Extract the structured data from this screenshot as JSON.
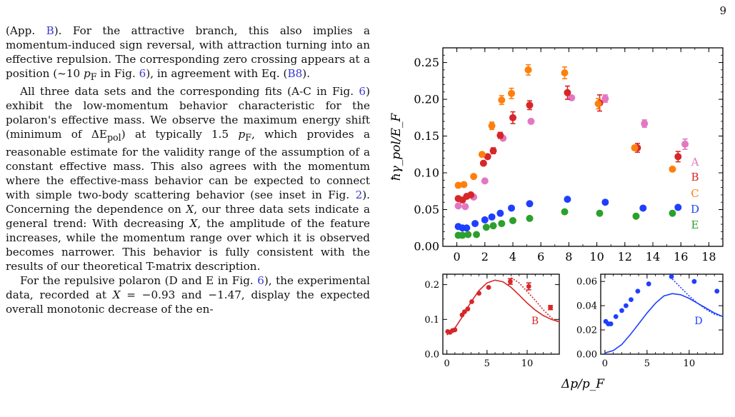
{
  "page_number": "9",
  "paragraphs": [
    {
      "indent": false,
      "segments": [
        {
          "t": "(App. "
        },
        {
          "t": "B",
          "link": true
        },
        {
          "t": "). For the attractive branch, this also implies a momentum-induced sign reversal, with attraction turning into an effective repulsion. The corresponding zero crossing appears at a position (~10 "
        },
        {
          "t": "p",
          "math": true
        },
        {
          "t": "F",
          "sub": true
        },
        {
          "t": " in Fig. "
        },
        {
          "t": "6",
          "link": true
        },
        {
          "t": "), in agreement with Eq. ("
        },
        {
          "t": "B8",
          "link": true
        },
        {
          "t": ")."
        }
      ]
    },
    {
      "indent": true,
      "segments": [
        {
          "t": "All three data sets and the corresponding fits (A-C in Fig. "
        },
        {
          "t": "6",
          "link": true
        },
        {
          "t": ") exhibit the low-momentum behavior characteristic for the polaron's effective mass. We observe the maximum energy shift (minimum of ΔE"
        },
        {
          "t": "pol",
          "sub": true
        },
        {
          "t": ") at typically 1.5 "
        },
        {
          "t": "p",
          "math": true
        },
        {
          "t": "F",
          "sub": true
        },
        {
          "t": ", which provides a reasonable estimate for the validity range of the assumption of a constant effective mass. This also agrees with the momentum where the effective-mass behavior can be expected to connect with simple two-body scattering behavior (see inset in Fig. "
        },
        {
          "t": "2",
          "link": true
        },
        {
          "t": "). Concerning the dependence on "
        },
        {
          "t": "X",
          "math": true
        },
        {
          "t": ", our three data sets indicate a general trend: With decreasing "
        },
        {
          "t": "X",
          "math": true
        },
        {
          "t": ", the amplitude of the feature increases, while the momentum range over which it is observed becomes narrower. This behavior is fully consistent with the results of our theoretical T-matrix description."
        }
      ]
    },
    {
      "indent": true,
      "segments": [
        {
          "t": "For the repulsive polaron (D and E in Fig. "
        },
        {
          "t": "6",
          "link": true
        },
        {
          "t": "), the experimental data, recorded at "
        },
        {
          "t": "X",
          "math": true
        },
        {
          "t": " = −0.93 and −1.47, display the expected overall monotonic decrease of the en-"
        }
      ]
    }
  ],
  "colors": {
    "A": "#e377c2",
    "B": "#d62728",
    "C": "#ff7f0e",
    "D": "#1f3fff",
    "E": "#2ca02c",
    "link": "#3a3acc"
  },
  "chart_data": [
    {
      "type": "scatter",
      "ylabel": "ħγ_pol/E_F",
      "xlim": [
        -1,
        19
      ],
      "ylim": [
        0,
        0.27
      ],
      "xticks": [
        0,
        2,
        4,
        6,
        8,
        10,
        12,
        14,
        16,
        18
      ],
      "yticks": [
        0.0,
        0.05,
        0.1,
        0.15,
        0.2,
        0.25
      ],
      "ytick_labels": [
        "0.00",
        "0.05",
        "0.10",
        "0.15",
        "0.20",
        "0.25"
      ],
      "legend": [
        "A",
        "B",
        "C",
        "D",
        "E"
      ],
      "legend_placement": "right",
      "series": [
        {
          "name": "A",
          "color": "#e377c2",
          "points": [
            [
              0.1,
              0.055
            ],
            [
              0.6,
              0.054
            ],
            [
              1.2,
              0.067
            ],
            [
              2.0,
              0.089
            ],
            [
              3.3,
              0.147
            ],
            [
              5.3,
              0.17
            ],
            [
              8.2,
              0.202
            ],
            [
              10.6,
              0.201
            ],
            [
              13.4,
              0.167
            ],
            [
              16.3,
              0.139
            ]
          ],
          "errors": [
            0,
            0,
            0,
            0,
            0,
            0,
            0,
            0.005,
            0.005,
            0.007
          ]
        },
        {
          "name": "B",
          "color": "#d62728",
          "points": [
            [
              0.1,
              0.065
            ],
            [
              0.4,
              0.063
            ],
            [
              0.7,
              0.068
            ],
            [
              1.0,
              0.07
            ],
            [
              1.9,
              0.113
            ],
            [
              2.2,
              0.122
            ],
            [
              2.6,
              0.13
            ],
            [
              3.1,
              0.151
            ],
            [
              4.0,
              0.175
            ],
            [
              5.2,
              0.192
            ],
            [
              7.9,
              0.209
            ],
            [
              10.2,
              0.195
            ],
            [
              12.9,
              0.134
            ],
            [
              15.8,
              0.122
            ]
          ],
          "errors": [
            0,
            0,
            0,
            0,
            0,
            0,
            0.004,
            0.004,
            0.008,
            0.006,
            0.009,
            0.011,
            0.006,
            0.007
          ]
        },
        {
          "name": "C",
          "color": "#ff7f0e",
          "points": [
            [
              0.1,
              0.083
            ],
            [
              0.5,
              0.084
            ],
            [
              1.2,
              0.095
            ],
            [
              1.8,
              0.125
            ],
            [
              2.5,
              0.164
            ],
            [
              3.2,
              0.199
            ],
            [
              3.9,
              0.208
            ],
            [
              5.1,
              0.24
            ],
            [
              7.7,
              0.236
            ],
            [
              10.1,
              0.194
            ],
            [
              12.7,
              0.134
            ],
            [
              15.4,
              0.105
            ]
          ],
          "errors": [
            0,
            0,
            0,
            0,
            0.005,
            0.006,
            0.007,
            0.007,
            0.008,
            0.007,
            0,
            0
          ]
        },
        {
          "name": "D",
          "color": "#1f3fff",
          "points": [
            [
              0.1,
              0.027
            ],
            [
              0.4,
              0.025
            ],
            [
              0.7,
              0.025
            ],
            [
              1.3,
              0.031
            ],
            [
              2.0,
              0.036
            ],
            [
              2.5,
              0.04
            ],
            [
              3.1,
              0.045
            ],
            [
              3.9,
              0.052
            ],
            [
              5.2,
              0.058
            ],
            [
              7.9,
              0.064
            ],
            [
              10.6,
              0.06
            ],
            [
              13.3,
              0.052
            ],
            [
              15.8,
              0.053
            ]
          ],
          "errors": []
        },
        {
          "name": "E",
          "color": "#2ca02c",
          "points": [
            [
              0.1,
              0.015
            ],
            [
              0.4,
              0.015
            ],
            [
              0.8,
              0.016
            ],
            [
              1.4,
              0.016
            ],
            [
              2.1,
              0.026
            ],
            [
              2.6,
              0.028
            ],
            [
              3.2,
              0.031
            ],
            [
              4.0,
              0.035
            ],
            [
              5.2,
              0.038
            ],
            [
              7.7,
              0.047
            ],
            [
              10.2,
              0.045
            ],
            [
              12.8,
              0.041
            ],
            [
              15.4,
              0.045
            ]
          ],
          "errors": []
        }
      ]
    },
    {
      "type": "line",
      "xlim": [
        -0.5,
        14
      ],
      "ylim": [
        0,
        0.23
      ],
      "xticks": [
        0,
        5,
        10
      ],
      "yticks": [
        0.0,
        0.1,
        0.2
      ],
      "ytick_labels": [
        "0.0",
        "0.1",
        "0.2"
      ],
      "label": "B",
      "series": [
        {
          "name": "B",
          "color": "#d62728",
          "points": [
            [
              0.1,
              0.065
            ],
            [
              0.4,
              0.063
            ],
            [
              0.7,
              0.068
            ],
            [
              1.0,
              0.07
            ],
            [
              1.9,
              0.113
            ],
            [
              2.2,
              0.122
            ],
            [
              2.6,
              0.13
            ],
            [
              3.1,
              0.151
            ],
            [
              4.0,
              0.175
            ],
            [
              5.2,
              0.192
            ],
            [
              7.9,
              0.209
            ],
            [
              10.2,
              0.195
            ],
            [
              12.9,
              0.134
            ]
          ],
          "errors": [
            0,
            0,
            0,
            0,
            0,
            0,
            0,
            0,
            0,
            0,
            0.008,
            0.01,
            0.006
          ]
        }
      ],
      "fit_solid": [
        [
          0,
          0.055
        ],
        [
          1,
          0.075
        ],
        [
          2,
          0.11
        ],
        [
          3,
          0.15
        ],
        [
          4,
          0.183
        ],
        [
          5,
          0.205
        ],
        [
          6,
          0.213
        ],
        [
          7,
          0.208
        ],
        [
          8,
          0.192
        ],
        [
          9,
          0.17
        ],
        [
          10,
          0.147
        ],
        [
          11,
          0.127
        ],
        [
          12,
          0.111
        ],
        [
          13,
          0.1
        ],
        [
          14,
          0.093
        ]
      ],
      "fit_dotted": [
        [
          8,
          0.22
        ],
        [
          9,
          0.205
        ],
        [
          10,
          0.18
        ],
        [
          11,
          0.155
        ],
        [
          12,
          0.128
        ],
        [
          13,
          0.105
        ],
        [
          14,
          0.092
        ]
      ]
    },
    {
      "type": "line",
      "xlim": [
        -0.5,
        14
      ],
      "ylim": [
        0,
        0.066
      ],
      "xticks": [
        0,
        5,
        10
      ],
      "yticks": [
        0.0,
        0.02,
        0.04,
        0.06
      ],
      "ytick_labels": [
        "0.00",
        "0.02",
        "0.04",
        "0.06"
      ],
      "label": "D",
      "series": [
        {
          "name": "D",
          "color": "#1f3fff",
          "points": [
            [
              0.1,
              0.027
            ],
            [
              0.4,
              0.025
            ],
            [
              0.7,
              0.025
            ],
            [
              1.3,
              0.031
            ],
            [
              2.0,
              0.036
            ],
            [
              2.5,
              0.04
            ],
            [
              3.1,
              0.045
            ],
            [
              3.9,
              0.052
            ],
            [
              5.2,
              0.058
            ],
            [
              7.9,
              0.064
            ],
            [
              10.6,
              0.06
            ],
            [
              13.3,
              0.052
            ]
          ],
          "errors": []
        }
      ],
      "fit_solid": [
        [
          0,
          0.001
        ],
        [
          1,
          0.003
        ],
        [
          2,
          0.008
        ],
        [
          3,
          0.016
        ],
        [
          4,
          0.025
        ],
        [
          5,
          0.034
        ],
        [
          6,
          0.042
        ],
        [
          7,
          0.048
        ],
        [
          8,
          0.05
        ],
        [
          9,
          0.049
        ],
        [
          10,
          0.046
        ],
        [
          11,
          0.042
        ],
        [
          12,
          0.038
        ],
        [
          13,
          0.034
        ],
        [
          14,
          0.031
        ]
      ],
      "fit_dotted": [
        [
          8,
          0.062
        ],
        [
          9,
          0.055
        ],
        [
          10,
          0.048
        ],
        [
          11,
          0.042
        ],
        [
          12,
          0.037
        ],
        [
          13,
          0.033
        ],
        [
          14,
          0.031
        ]
      ]
    }
  ],
  "x_label": "Δp/p_F"
}
